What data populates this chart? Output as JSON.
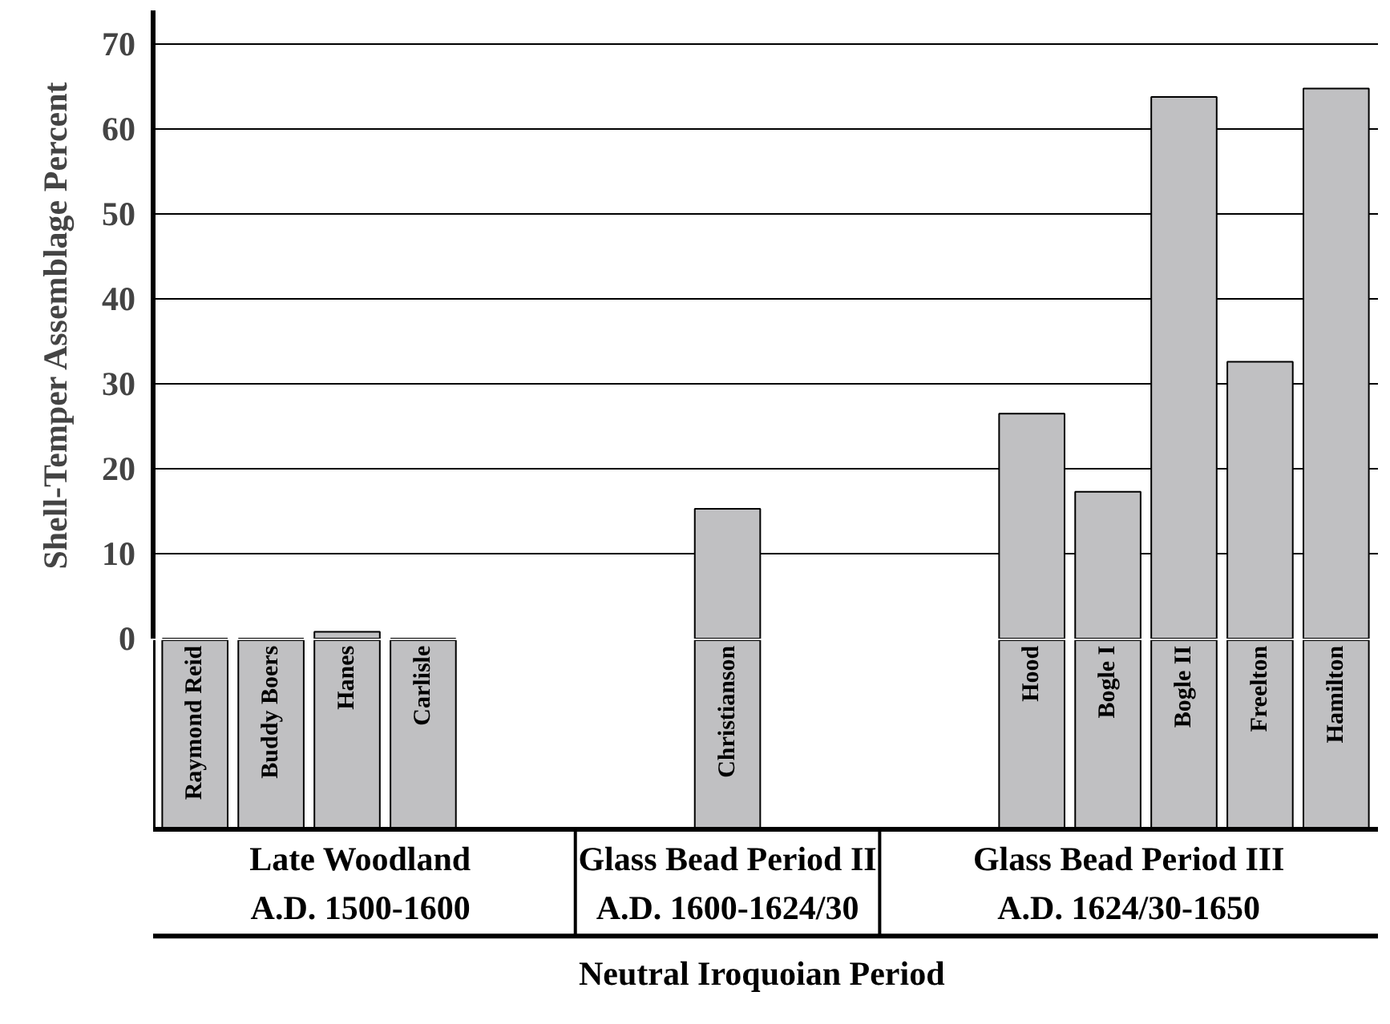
{
  "chart_data": {
    "type": "bar",
    "ylabel": "Shell-Temper Assemblage Percent",
    "xlabel": "Neutral Iroquoian Period",
    "categories": [
      "Raymond Reid",
      "Buddy Boers",
      "Hanes",
      "Carlisle",
      null,
      null,
      null,
      "Christianson",
      null,
      null,
      null,
      "Hood",
      "Bogle I",
      "Bogle II",
      "Freelton",
      "Hamilton"
    ],
    "values": [
      0,
      0,
      0.8,
      0,
      null,
      null,
      null,
      15.3,
      null,
      null,
      null,
      26.5,
      17.3,
      63.8,
      32.6,
      64.8
    ],
    "color": "#c0c0c2",
    "ylim": [
      0,
      74
    ],
    "yticks": [
      0,
      10,
      20,
      30,
      40,
      50,
      60,
      70
    ],
    "grid": "y",
    "annotations": [
      "Late Woodland\nA.D. 1500-1600",
      "Glass Bead Period II\nA.D. 1600-1624/30",
      "Glass Bead Period III\nA.D. 1624/30-1650"
    ]
  }
}
